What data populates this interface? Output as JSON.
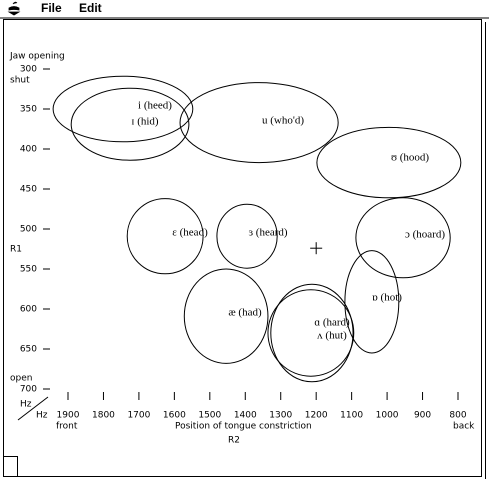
{
  "menu": {
    "items": [
      "File",
      "Edit"
    ]
  },
  "chart_data": {
    "type": "ellipse",
    "y_title": "Jaw opening",
    "y_top": "shut",
    "y_label": "R1",
    "y_bottom": "open",
    "y_unit": "Hz",
    "x_unit": "Hz",
    "x_left": "front",
    "x_title": "Position of tongue constriction",
    "x_right": "back",
    "x_label": "R2",
    "xlim": [
      1900,
      800
    ],
    "ylim": [
      300,
      700
    ],
    "xticks": [
      1900,
      1800,
      1700,
      1600,
      1500,
      1400,
      1300,
      1200,
      1100,
      1000,
      900,
      800
    ],
    "yticks": [
      300,
      350,
      400,
      450,
      500,
      550,
      600,
      650,
      700
    ],
    "crosshair": {
      "x": 1200,
      "y": 524
    },
    "vowels": [
      {
        "label": "i (heed)",
        "x": 1745,
        "y": 350,
        "rx": 197,
        "ry": 41
      },
      {
        "label": "ɪ (hid)",
        "x": 1725,
        "y": 369,
        "rx": 166,
        "ry": 45
      },
      {
        "label": "u (who'd)",
        "x": 1361,
        "y": 367,
        "rx": 223,
        "ry": 50
      },
      {
        "label": "ʊ (hood)",
        "x": 995,
        "y": 417,
        "rx": 203,
        "ry": 44
      },
      {
        "label": "ɛ (head)",
        "x": 1626,
        "y": 509,
        "rx": 107,
        "ry": 47
      },
      {
        "label": "ɜ (heard)",
        "x": 1395,
        "y": 509,
        "rx": 85,
        "ry": 40
      },
      {
        "label": "ɔ (hoard)",
        "x": 955,
        "y": 511,
        "rx": 133,
        "ry": 50
      },
      {
        "label": "æ (had)",
        "x": 1454,
        "y": 609,
        "rx": 118,
        "ry": 59
      },
      {
        "label": "ɑ (hard)",
        "x": 1212,
        "y": 630,
        "rx": 116,
        "ry": 61
      },
      {
        "label": "ʌ (hut)",
        "x": 1215,
        "y": 630,
        "rx": 121,
        "ry": 54
      },
      {
        "label": "ɒ (hot)",
        "x": 1043,
        "y": 591,
        "rx": 76,
        "ry": 64
      }
    ]
  }
}
